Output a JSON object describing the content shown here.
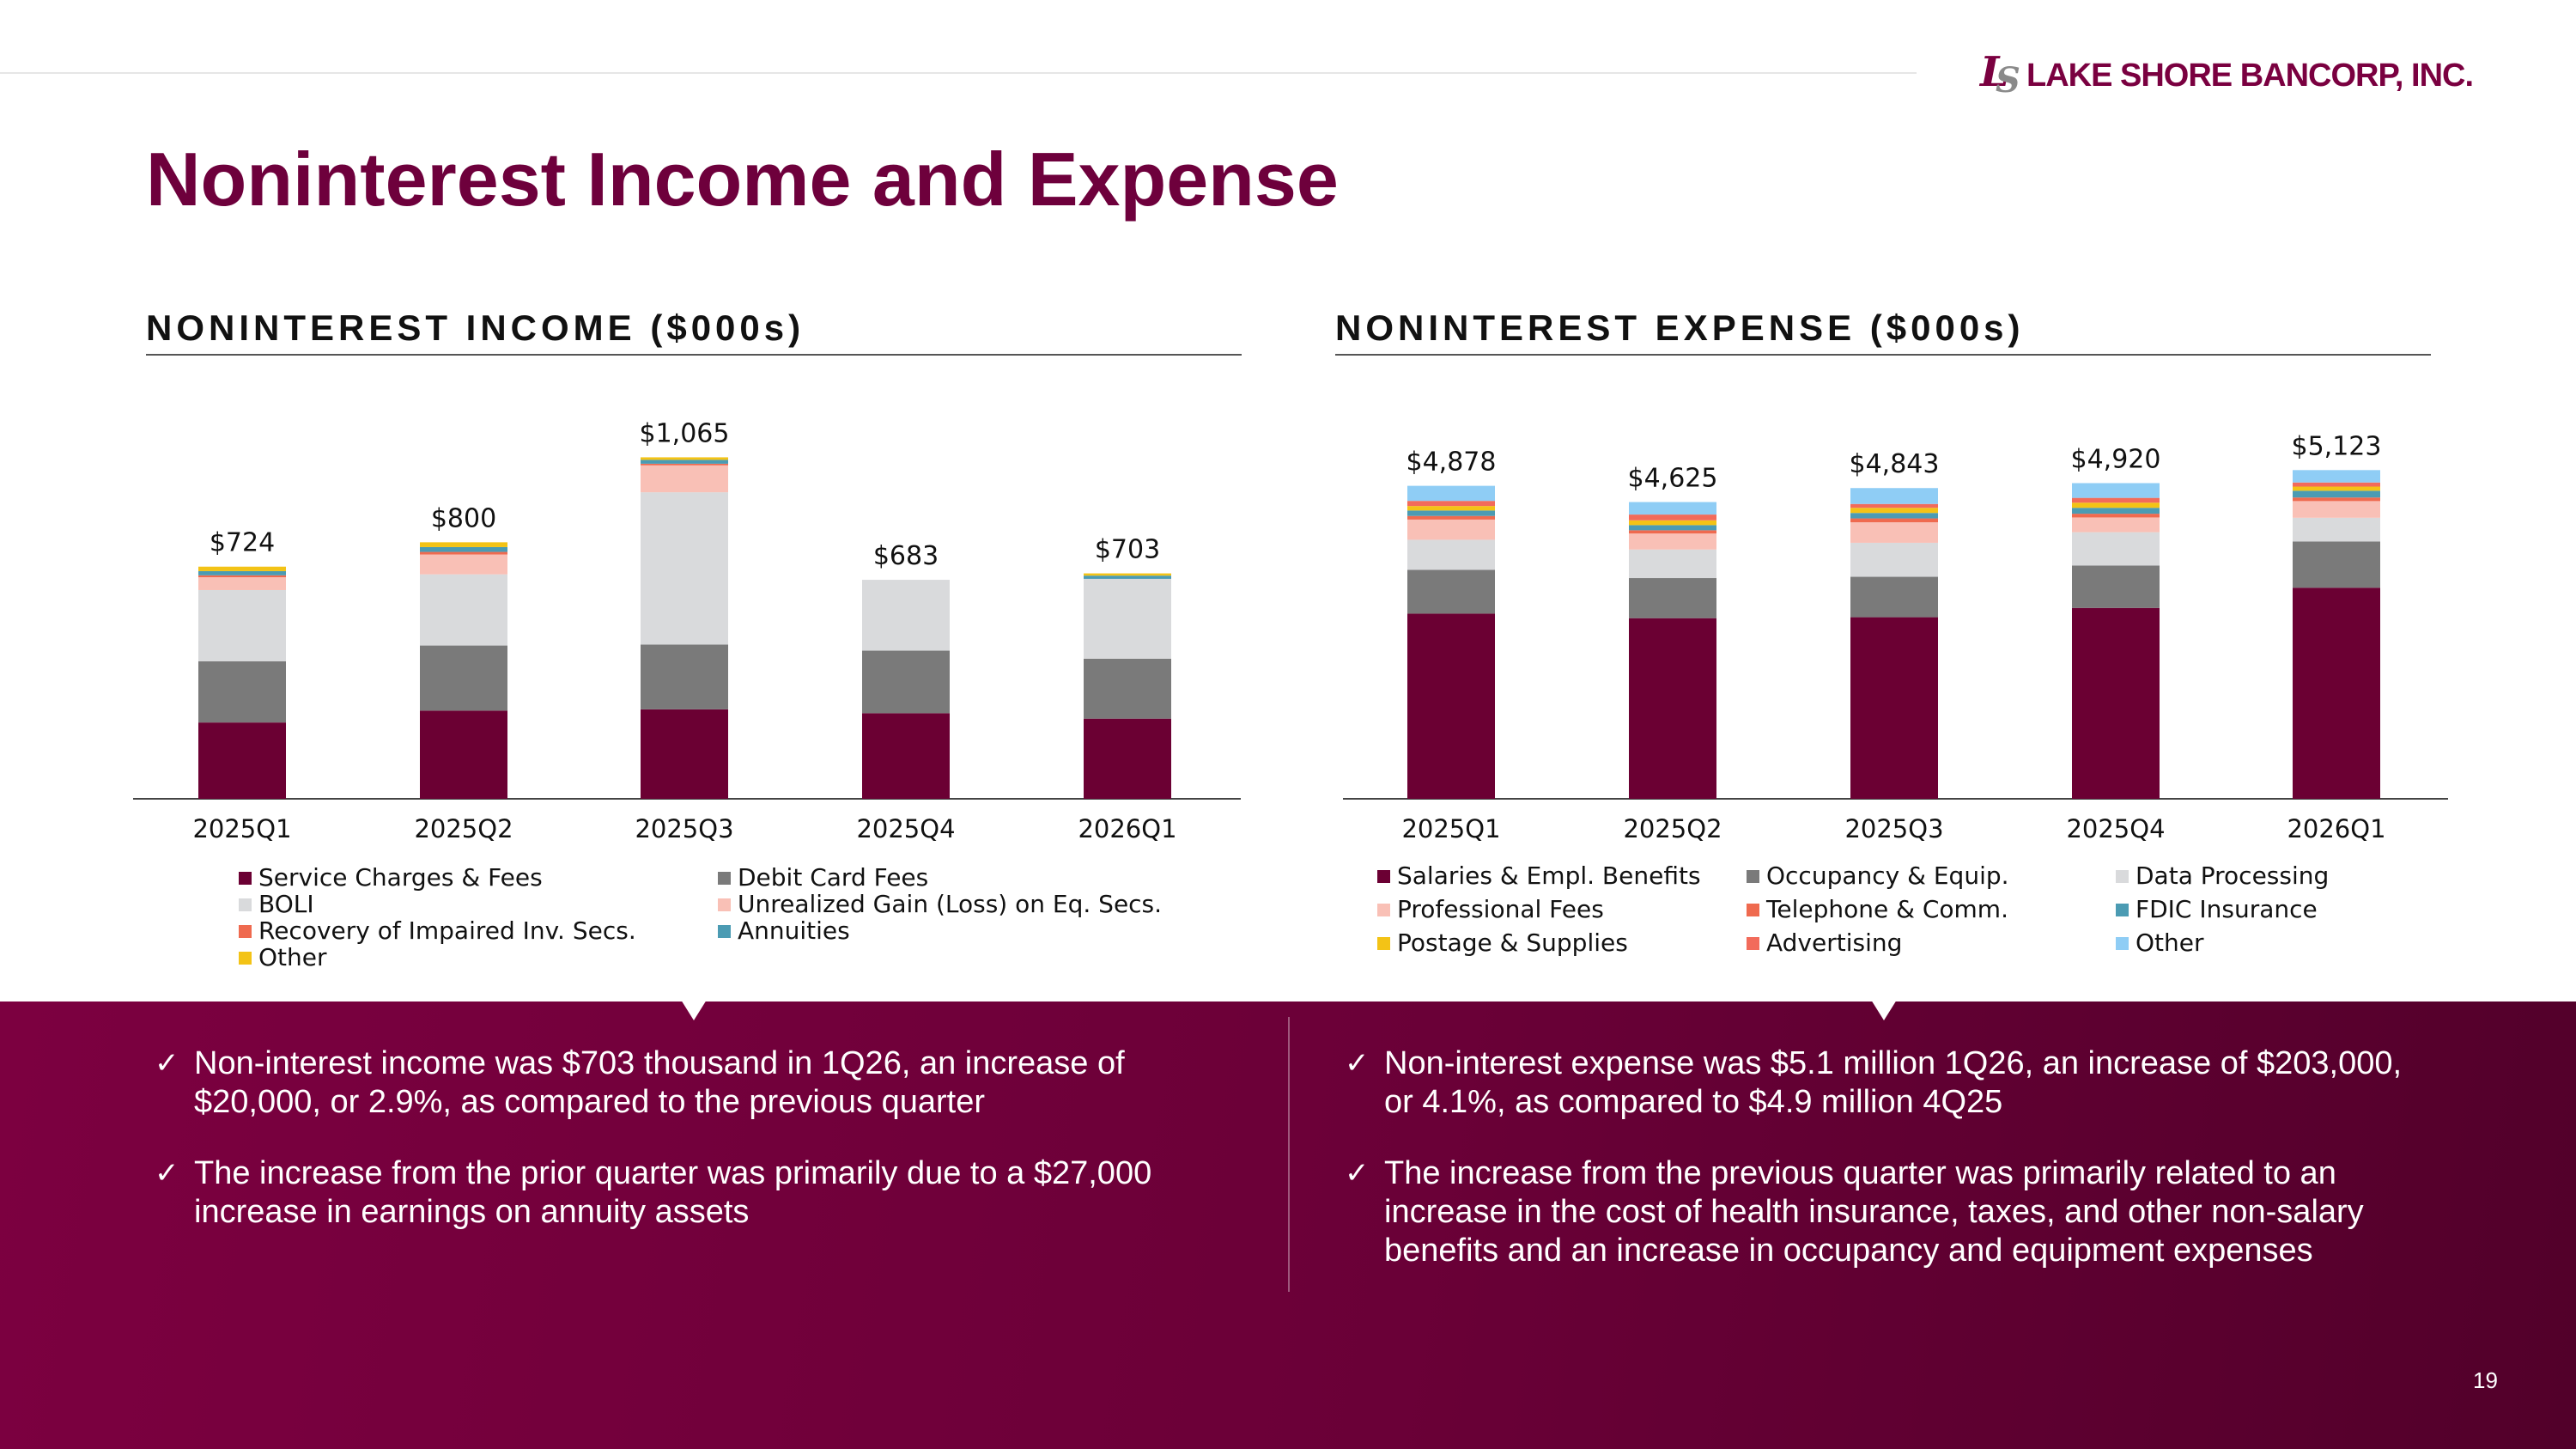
{
  "header": {
    "logo_mark_l": "L",
    "logo_mark_s": "S",
    "logo_text": "LAKE SHORE BANCORP, INC.",
    "title": "Noninterest Income and Expense"
  },
  "income_section_title": "NONINTEREST INCOME ($000s)",
  "expense_section_title": "NONINTEREST EXPENSE ($000s)",
  "chart_data": [
    {
      "type": "bar",
      "stacked": true,
      "title": "NONINTEREST INCOME ($000s)",
      "categories": [
        "2025Q1",
        "2025Q2",
        "2025Q3",
        "2025Q4",
        "2026Q1"
      ],
      "totals": [
        724,
        800,
        1065,
        683,
        703
      ],
      "total_labels": [
        "$724",
        "$800",
        "$1,065",
        "$683",
        "$703"
      ],
      "ylim": [
        0,
        1100
      ],
      "legend_position": "bottom",
      "series": [
        {
          "name": "Service Charges & Fees",
          "color": "#6b0033",
          "values": [
            238,
            275,
            279,
            267,
            250
          ]
        },
        {
          "name": "Debit Card Fees",
          "color": "#7a7a7a",
          "values": [
            191,
            203,
            202,
            195,
            187
          ]
        },
        {
          "name": "BOLI",
          "color": "#d9dadc",
          "values": [
            222,
            222,
            475,
            221,
            249
          ]
        },
        {
          "name": "Unrealized Gain (Loss) on Eq. Secs.",
          "color": "#f9c0b6",
          "values": [
            40,
            62,
            84,
            0,
            0
          ]
        },
        {
          "name": "Recovery of Impaired Inv. Secs.",
          "color": "#ef6a4f",
          "values": [
            6,
            8,
            5,
            0,
            0
          ]
        },
        {
          "name": "Annuities",
          "color": "#4b9bb3",
          "values": [
            13,
            15,
            12,
            0,
            10
          ]
        },
        {
          "name": "Other",
          "color": "#f3c316",
          "values": [
            14,
            15,
            8,
            0,
            7
          ]
        }
      ]
    },
    {
      "type": "bar",
      "stacked": true,
      "title": "NONINTEREST EXPENSE ($000s)",
      "categories": [
        "2025Q1",
        "2025Q2",
        "2025Q3",
        "2025Q4",
        "2026Q1"
      ],
      "totals": [
        4878,
        4625,
        4843,
        4920,
        5123
      ],
      "total_labels": [
        "$4,878",
        "$4,625",
        "$4,843",
        "$4,920",
        "$5,123"
      ],
      "ylim": [
        0,
        5500
      ],
      "legend_position": "bottom",
      "series": [
        {
          "name": "Salaries & Empl. Benefits",
          "color": "#6b0033",
          "values": [
            2886,
            2815,
            2830,
            2975,
            3290
          ]
        },
        {
          "name": "Occupancy & Equip.",
          "color": "#7a7a7a",
          "values": [
            683,
            625,
            630,
            660,
            720
          ]
        },
        {
          "name": "Data Processing",
          "color": "#d9dadc",
          "values": [
            468,
            445,
            530,
            520,
            370
          ]
        },
        {
          "name": "Professional Fees",
          "color": "#f9c0b6",
          "values": [
            315,
            250,
            320,
            230,
            260
          ]
        },
        {
          "name": "Telephone & Comm.",
          "color": "#ef6a4f",
          "values": [
            56,
            50,
            60,
            58,
            56
          ]
        },
        {
          "name": "FDIC Insurance",
          "color": "#4b9bb3",
          "values": [
            85,
            80,
            85,
            92,
            105
          ]
        },
        {
          "name": "Postage & Supplies",
          "color": "#f3c316",
          "values": [
            70,
            75,
            80,
            80,
            65
          ]
        },
        {
          "name": "Advertising",
          "color": "#f26b5b",
          "values": [
            80,
            90,
            60,
            75,
            64
          ]
        },
        {
          "name": "Other",
          "color": "#8fcdf5",
          "values": [
            235,
            195,
            248,
            230,
            193
          ]
        }
      ]
    }
  ],
  "bullets_left": [
    "Non-interest income was $703 thousand in 1Q26, an increase of $20,000, or 2.9%, as compared to the previous quarter",
    "The increase from the prior quarter was primarily due to a $27,000 increase in earnings on annuity assets"
  ],
  "bullets_right": [
    "Non-interest expense was $5.1 million 1Q26, an increase of $203,000, or 4.1%, as compared to $4.9 million 4Q25",
    "The increase from the previous quarter was primarily related to an increase in the cost of health insurance, taxes, and other non-salary benefits and an increase in occupancy and equipment expenses"
  ],
  "check_glyph": "✓",
  "page_number": "19"
}
